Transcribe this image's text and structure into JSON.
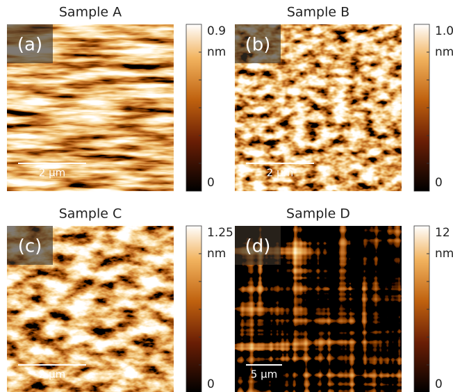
{
  "panels": [
    {
      "title": "Sample A",
      "label": "(a)",
      "scale_bar": "2 μm",
      "colorbar": {
        "max": "0.9",
        "unit": "nm",
        "min": "0"
      }
    },
    {
      "title": "Sample B",
      "label": "(b)",
      "scale_bar": "2 μm",
      "colorbar": {
        "max": "1.0",
        "unit": "nm",
        "min": "0"
      }
    },
    {
      "title": "Sample C",
      "label": "(c)",
      "scale_bar": "2 μm",
      "colorbar": {
        "max": "1.25",
        "unit": "nm",
        "min": "0"
      }
    },
    {
      "title": "Sample D",
      "label": "(d)",
      "scale_bar": "5 μm",
      "colorbar": {
        "max": "12",
        "unit": "nm",
        "min": "0"
      }
    }
  ]
}
